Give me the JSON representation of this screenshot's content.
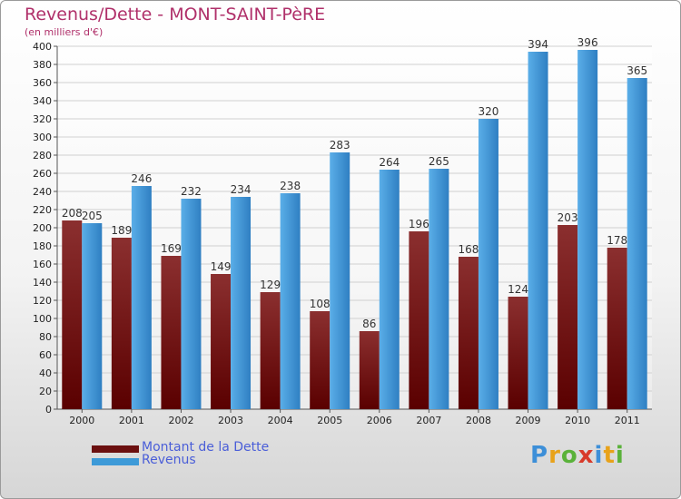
{
  "header": {
    "title": "Revenus/Dette - MONT-SAINT-PèRE",
    "subtitle": "(en milliers d'€)"
  },
  "legend": {
    "items": [
      {
        "label": "Montant de la Dette",
        "color": "#6b0f0f"
      },
      {
        "label": "Revenus",
        "color": "#3d9ad8"
      }
    ]
  },
  "logo": {
    "text": "Proxiti",
    "letter_colors": [
      "#3d8fd8",
      "#e8a21a",
      "#5ab23a",
      "#d83a2a",
      "#3d8fd8",
      "#e8a21a",
      "#5ab23a"
    ]
  },
  "colors": {
    "debt_dark": "#5a0000",
    "debt_light": "#8b2f2f",
    "revenue_dark": "#2f7fc2",
    "revenue_light": "#5aaee8",
    "axis_text": "#222222",
    "grid": "#d0d0d0"
  },
  "chart_data": {
    "type": "bar",
    "categories": [
      "2000",
      "2001",
      "2002",
      "2003",
      "2004",
      "2005",
      "2006",
      "2007",
      "2008",
      "2009",
      "2010",
      "2011"
    ],
    "series": [
      {
        "name": "Montant de la Dette",
        "values": [
          208,
          189,
          169,
          149,
          129,
          108,
          86,
          196,
          168,
          124,
          203,
          178
        ]
      },
      {
        "name": "Revenus",
        "values": [
          205,
          246,
          232,
          234,
          238,
          283,
          264,
          265,
          320,
          394,
          396,
          365
        ]
      }
    ],
    "ylim": [
      0,
      400
    ],
    "ytick_step": 20,
    "grid": true,
    "legend_position": "bottom-left"
  }
}
